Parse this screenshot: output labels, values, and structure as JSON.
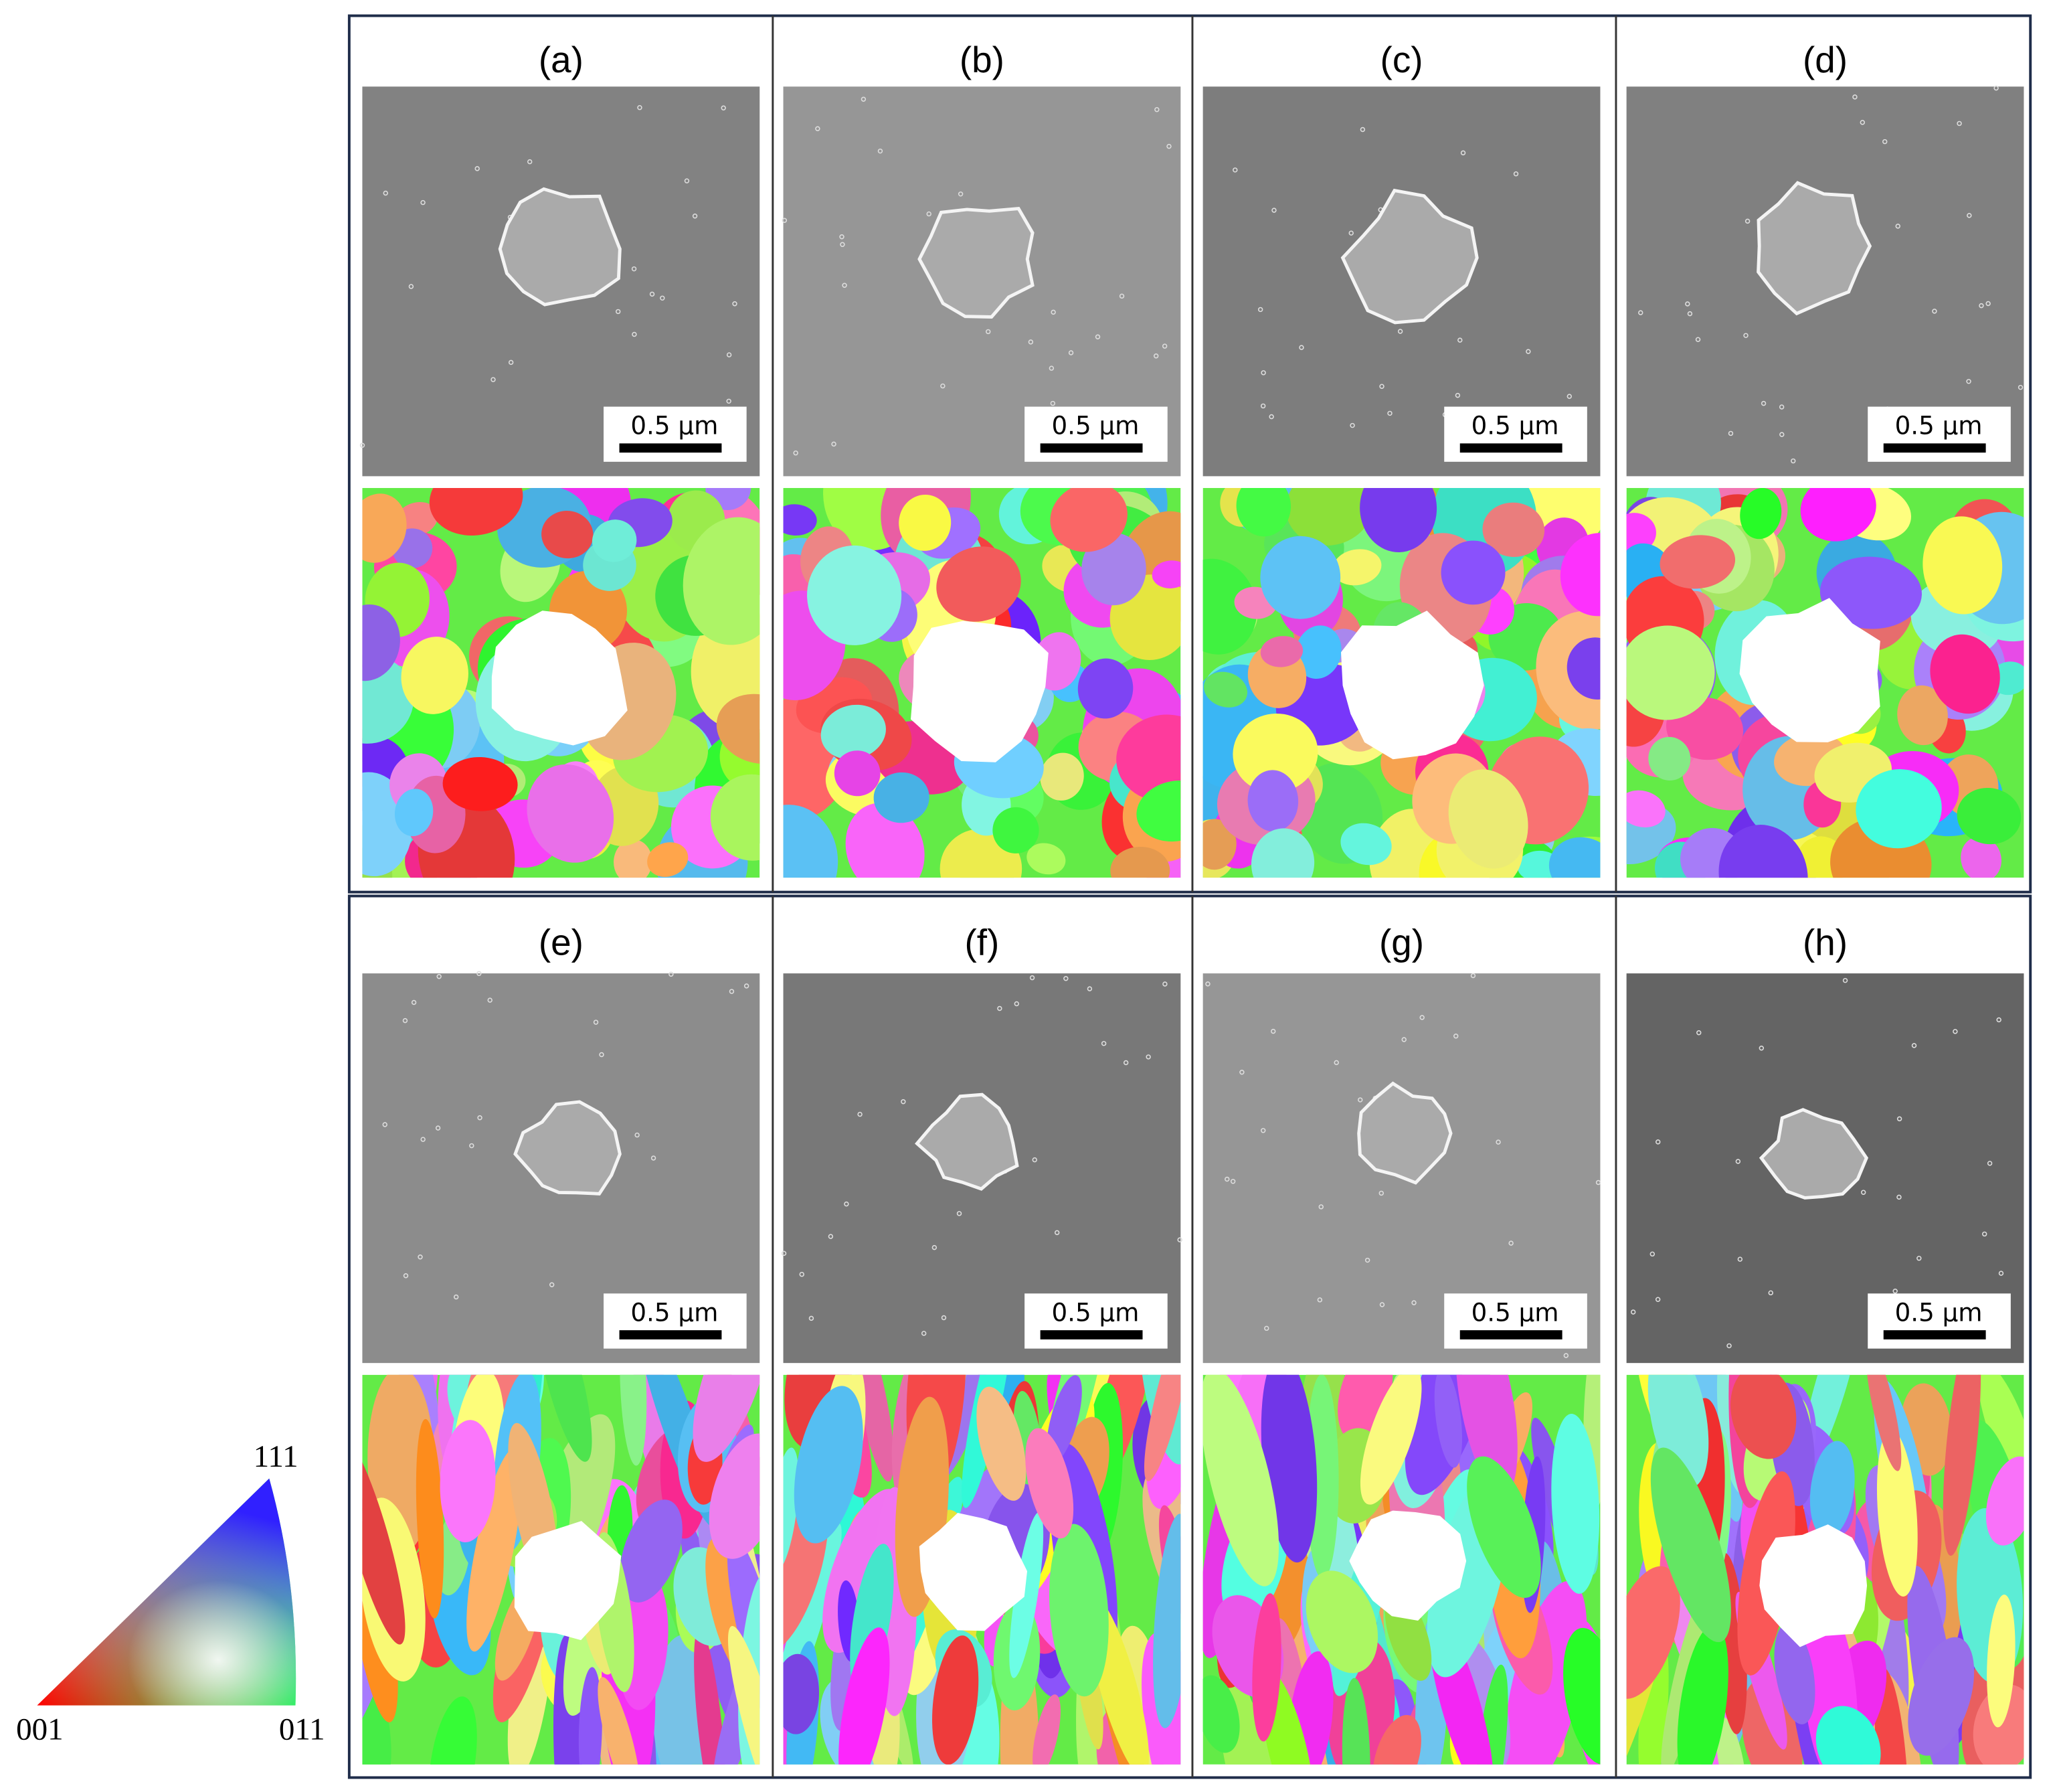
{
  "panels": [
    {
      "label": "(a)",
      "scale_bar": "0.5 µm"
    },
    {
      "label": "(b)",
      "scale_bar": "0.5 µm"
    },
    {
      "label": "(c)",
      "scale_bar": "0.5 µm"
    },
    {
      "label": "(d)",
      "scale_bar": "0.5 µm"
    },
    {
      "label": "(e)",
      "scale_bar": "0.5 µm"
    },
    {
      "label": "(f)",
      "scale_bar": "0.5 µm"
    },
    {
      "label": "(g)",
      "scale_bar": "0.5 µm"
    },
    {
      "label": "(h)",
      "scale_bar": "0.5 µm"
    }
  ],
  "legend": {
    "top": "111",
    "left": "001",
    "right": "011"
  }
}
